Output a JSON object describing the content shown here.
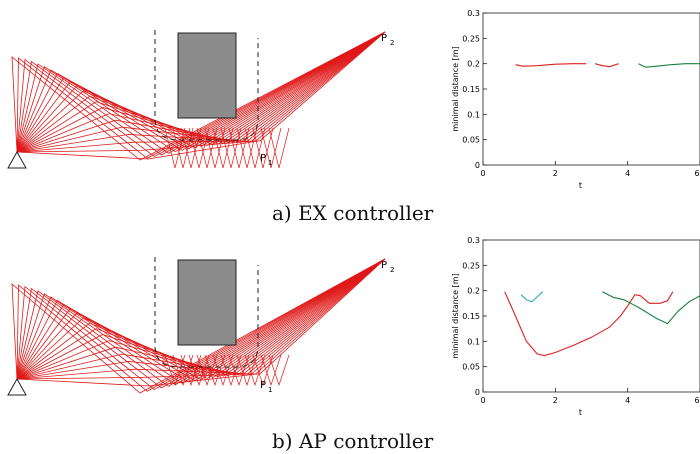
{
  "panels": [
    {
      "caption": "a) EX controller",
      "labels": {
        "p2": "P",
        "p2_sub": "2",
        "p1": "P",
        "p1_sub": "1"
      },
      "chart_data": {
        "type": "line",
        "xlabel": "t",
        "ylabel": "minimal distance [m]",
        "xlim": [
          0,
          6
        ],
        "ylim": [
          0,
          0.3
        ],
        "xticks": [
          "0",
          "2",
          "4",
          "6"
        ],
        "yticks": [
          "0",
          "0.05",
          "0.1",
          "0.15",
          "0.2",
          "0.25",
          "0.3"
        ],
        "series": [
          {
            "color": "#e02020",
            "points": [
              [
                0.9,
                0.198
              ],
              [
                1.1,
                0.195
              ],
              [
                1.5,
                0.196
              ],
              [
                2.0,
                0.199
              ],
              [
                2.5,
                0.2
              ],
              [
                2.85,
                0.2
              ]
            ]
          },
          {
            "color": "#e02020",
            "points": [
              [
                3.1,
                0.2
              ],
              [
                3.3,
                0.196
              ],
              [
                3.5,
                0.194
              ],
              [
                3.75,
                0.2
              ]
            ]
          },
          {
            "color": "#1a8040",
            "points": [
              [
                4.3,
                0.2
              ],
              [
                4.5,
                0.193
              ],
              [
                4.8,
                0.195
              ],
              [
                5.2,
                0.198
              ],
              [
                5.6,
                0.2
              ],
              [
                6.0,
                0.2
              ]
            ]
          }
        ]
      }
    },
    {
      "caption": "b) AP controller",
      "labels": {
        "p2": "P",
        "p2_sub": "2",
        "p1": "P",
        "p1_sub": "1"
      },
      "chart_data": {
        "type": "line",
        "xlabel": "t",
        "ylabel": "minimal distance [m]",
        "xlim": [
          0,
          6
        ],
        "ylim": [
          0,
          0.3
        ],
        "xticks": [
          "0",
          "2",
          "4",
          "6"
        ],
        "yticks": [
          "0",
          "0.05",
          "0.1",
          "0.15",
          "0.2",
          "0.25",
          "0.3"
        ],
        "series": [
          {
            "color": "#e02020",
            "points": [
              [
                0.6,
                0.198
              ],
              [
                0.9,
                0.15
              ],
              [
                1.2,
                0.1
              ],
              [
                1.5,
                0.075
              ],
              [
                1.7,
                0.072
              ],
              [
                2.0,
                0.078
              ],
              [
                2.5,
                0.092
              ],
              [
                3.0,
                0.108
              ],
              [
                3.5,
                0.128
              ],
              [
                3.8,
                0.15
              ],
              [
                4.0,
                0.17
              ],
              [
                4.2,
                0.192
              ],
              [
                4.35,
                0.19
              ],
              [
                4.6,
                0.175
              ],
              [
                4.9,
                0.175
              ],
              [
                5.1,
                0.18
              ],
              [
                5.25,
                0.198
              ]
            ]
          },
          {
            "color": "#2ab0c0",
            "points": [
              [
                1.05,
                0.192
              ],
              [
                1.2,
                0.182
              ],
              [
                1.35,
                0.178
              ],
              [
                1.5,
                0.188
              ],
              [
                1.65,
                0.198
              ]
            ]
          },
          {
            "color": "#1a8040",
            "points": [
              [
                3.3,
                0.198
              ],
              [
                3.6,
                0.187
              ],
              [
                3.9,
                0.182
              ],
              [
                4.3,
                0.167
              ],
              [
                4.8,
                0.145
              ],
              [
                5.1,
                0.135
              ],
              [
                5.4,
                0.16
              ],
              [
                5.7,
                0.178
              ],
              [
                6.0,
                0.19
              ]
            ]
          }
        ]
      }
    }
  ]
}
